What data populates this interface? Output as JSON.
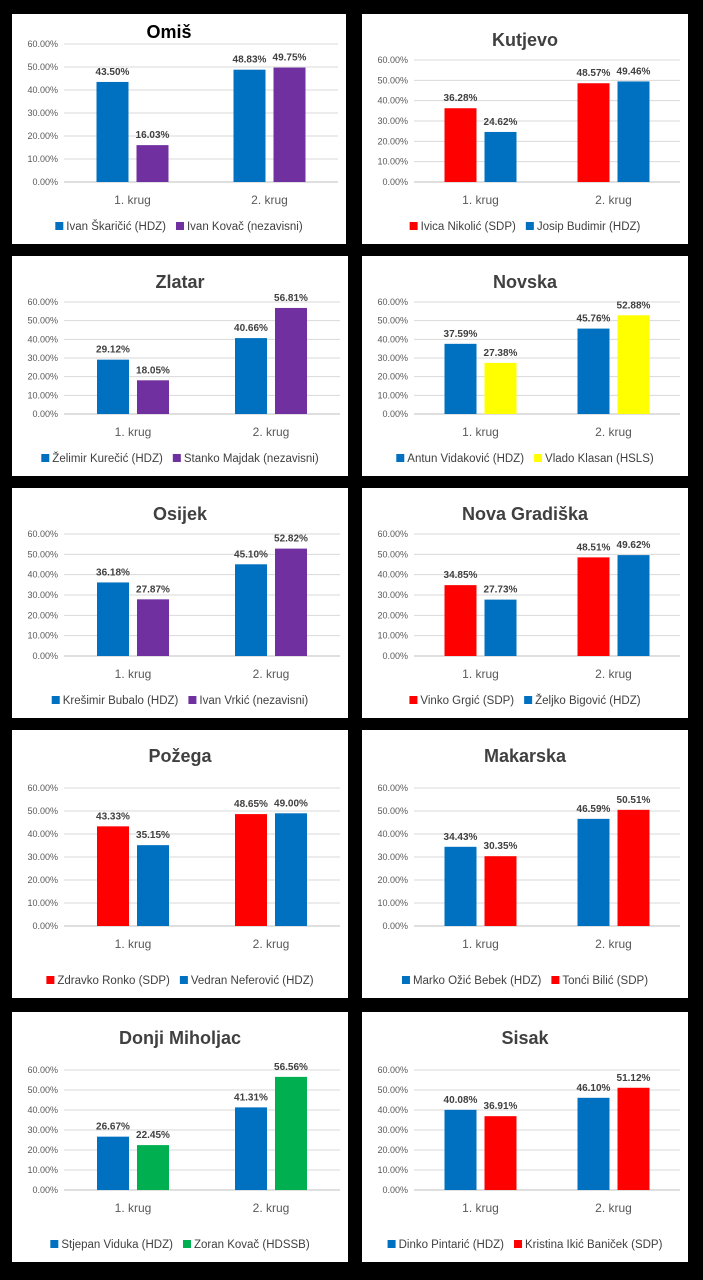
{
  "colors": {
    "blue": "#0070c0",
    "purple": "#7030a0",
    "red": "#ff0000",
    "yellow": "#ffff00",
    "green": "#00b050"
  },
  "chart_data": [
    {
      "type": "bar",
      "title": "Omiš",
      "categories": [
        "1. krug",
        "2. krug"
      ],
      "ylim": [
        0,
        60
      ],
      "yticks": [
        "0.00%",
        "10.00%",
        "20.00%",
        "30.00%",
        "40.00%",
        "50.00%",
        "60.00%"
      ],
      "series": [
        {
          "name": "Ivan Škaričić (HDZ)",
          "color": "#0070c0",
          "values": [
            43.5,
            48.83
          ],
          "labels": [
            "43.50%",
            "48.83%"
          ]
        },
        {
          "name": "Ivan Kovač (nezavisni)",
          "color": "#7030a0",
          "values": [
            16.03,
            49.75
          ],
          "labels": [
            "16.03%",
            "49.75%"
          ]
        }
      ]
    },
    {
      "type": "bar",
      "title": "Kutjevo",
      "categories": [
        "1. krug",
        "2. krug"
      ],
      "ylim": [
        0,
        60
      ],
      "yticks": [
        "0.00%",
        "10.00%",
        "20.00%",
        "30.00%",
        "40.00%",
        "50.00%",
        "60.00%"
      ],
      "series": [
        {
          "name": "Ivica Nikolić (SDP)",
          "color": "#ff0000",
          "values": [
            36.28,
            48.57
          ],
          "labels": [
            "36.28%",
            "48.57%"
          ]
        },
        {
          "name": "Josip Budimir (HDZ)",
          "color": "#0070c0",
          "values": [
            24.62,
            49.46
          ],
          "labels": [
            "24.62%",
            "49.46%"
          ]
        }
      ]
    },
    {
      "type": "bar",
      "title": "Zlatar",
      "categories": [
        "1. krug",
        "2. krug"
      ],
      "ylim": [
        0,
        60
      ],
      "yticks": [
        "0.00%",
        "10.00%",
        "20.00%",
        "30.00%",
        "40.00%",
        "50.00%",
        "60.00%"
      ],
      "series": [
        {
          "name": "Želimir Kurečić (HDZ)",
          "color": "#0070c0",
          "values": [
            29.12,
            40.66
          ],
          "labels": [
            "29.12%",
            "40.66%"
          ]
        },
        {
          "name": "Stanko Majdak (nezavisni)",
          "color": "#7030a0",
          "values": [
            18.05,
            56.81
          ],
          "labels": [
            "18.05%",
            "56.81%"
          ]
        }
      ]
    },
    {
      "type": "bar",
      "title": "Novska",
      "categories": [
        "1. krug",
        "2. krug"
      ],
      "ylim": [
        0,
        60
      ],
      "yticks": [
        "0.00%",
        "10.00%",
        "20.00%",
        "30.00%",
        "40.00%",
        "50.00%",
        "60.00%"
      ],
      "series": [
        {
          "name": "Antun Vidaković (HDZ)",
          "color": "#0070c0",
          "values": [
            37.59,
            45.76
          ],
          "labels": [
            "37.59%",
            "45.76%"
          ]
        },
        {
          "name": "Vlado Klasan (HSLS)",
          "color": "#ffff00",
          "values": [
            27.38,
            52.88
          ],
          "labels": [
            "27.38%",
            "52.88%"
          ]
        }
      ]
    },
    {
      "type": "bar",
      "title": "Osijek",
      "categories": [
        "1. krug",
        "2. krug"
      ],
      "ylim": [
        0,
        60
      ],
      "yticks": [
        "0.00%",
        "10.00%",
        "20.00%",
        "30.00%",
        "40.00%",
        "50.00%",
        "60.00%"
      ],
      "series": [
        {
          "name": "Krešimir Bubalo (HDZ)",
          "color": "#0070c0",
          "values": [
            36.18,
            45.1
          ],
          "labels": [
            "36.18%",
            "45.10%"
          ]
        },
        {
          "name": "Ivan Vrkić (nezavisni)",
          "color": "#7030a0",
          "values": [
            27.87,
            52.82
          ],
          "labels": [
            "27.87%",
            "52.82%"
          ]
        }
      ]
    },
    {
      "type": "bar",
      "title": "Nova Gradiška",
      "categories": [
        "1. krug",
        "2. krug"
      ],
      "ylim": [
        0,
        60
      ],
      "yticks": [
        "0.00%",
        "10.00%",
        "20.00%",
        "30.00%",
        "40.00%",
        "50.00%",
        "60.00%"
      ],
      "series": [
        {
          "name": "Vinko Grgić (SDP)",
          "color": "#ff0000",
          "values": [
            34.85,
            48.51
          ],
          "labels": [
            "34.85%",
            "48.51%"
          ]
        },
        {
          "name": "Željko Bigović (HDZ)",
          "color": "#0070c0",
          "values": [
            27.73,
            49.62
          ],
          "labels": [
            "27.73%",
            "49.62%"
          ]
        }
      ]
    },
    {
      "type": "bar",
      "title": "Požega",
      "categories": [
        "1. krug",
        "2. krug"
      ],
      "ylim": [
        0,
        60
      ],
      "yticks": [
        "0.00%",
        "10.00%",
        "20.00%",
        "30.00%",
        "40.00%",
        "50.00%",
        "60.00%"
      ],
      "series": [
        {
          "name": "Zdravko Ronko (SDP)",
          "color": "#ff0000",
          "values": [
            43.33,
            48.65
          ],
          "labels": [
            "43.33%",
            "48.65%"
          ]
        },
        {
          "name": "Vedran Neferović (HDZ)",
          "color": "#0070c0",
          "values": [
            35.15,
            49.0
          ],
          "labels": [
            "35.15%",
            "49.00%"
          ]
        }
      ]
    },
    {
      "type": "bar",
      "title": "Makarska",
      "categories": [
        "1. krug",
        "2. krug"
      ],
      "ylim": [
        0,
        60
      ],
      "yticks": [
        "0.00%",
        "10.00%",
        "20.00%",
        "30.00%",
        "40.00%",
        "50.00%",
        "60.00%"
      ],
      "series": [
        {
          "name": "Marko Ožić Bebek (HDZ)",
          "color": "#0070c0",
          "values": [
            34.43,
            46.59
          ],
          "labels": [
            "34.43%",
            "46.59%"
          ]
        },
        {
          "name": "Tonći Bilić (SDP)",
          "color": "#ff0000",
          "values": [
            30.35,
            50.51
          ],
          "labels": [
            "30.35%",
            "50.51%"
          ]
        }
      ]
    },
    {
      "type": "bar",
      "title": "Donji Miholjac",
      "categories": [
        "1. krug",
        "2. krug"
      ],
      "ylim": [
        0,
        60
      ],
      "yticks": [
        "0.00%",
        "10.00%",
        "20.00%",
        "30.00%",
        "40.00%",
        "50.00%",
        "60.00%"
      ],
      "series": [
        {
          "name": "Stjepan Viduka (HDZ)",
          "color": "#0070c0",
          "values": [
            26.67,
            41.31
          ],
          "labels": [
            "26.67%",
            "41.31%"
          ]
        },
        {
          "name": "Zoran Kovač (HDSSB)",
          "color": "#00b050",
          "values": [
            22.45,
            56.56
          ],
          "labels": [
            "22.45%",
            "56.56%"
          ]
        }
      ]
    },
    {
      "type": "bar",
      "title": "Sisak",
      "categories": [
        "1. krug",
        "2. krug"
      ],
      "ylim": [
        0,
        60
      ],
      "yticks": [
        "0.00%",
        "10.00%",
        "20.00%",
        "30.00%",
        "40.00%",
        "50.00%",
        "60.00%"
      ],
      "series": [
        {
          "name": "Dinko Pintarić (HDZ)",
          "color": "#0070c0",
          "values": [
            40.08,
            46.1
          ],
          "labels": [
            "40.08%",
            "46.10%"
          ]
        },
        {
          "name": "Kristina Ikić Baniček (SDP)",
          "color": "#ff0000",
          "values": [
            36.91,
            51.12
          ],
          "labels": [
            "36.91%",
            "51.12%"
          ]
        }
      ]
    }
  ]
}
